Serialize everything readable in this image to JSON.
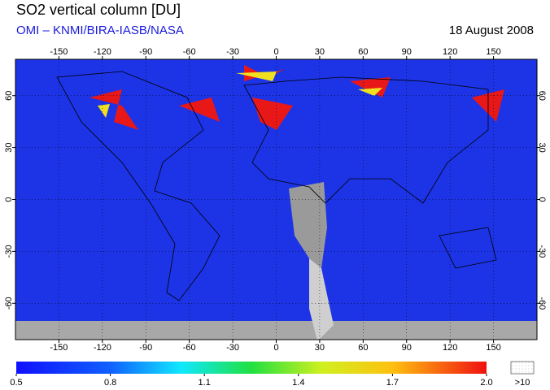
{
  "title": "SO2 vertical column [DU]",
  "source": "OMI  –  KNMI/BIRA-IASB/NASA",
  "date": "18 August 2008",
  "map": {
    "lon_range": [
      -180,
      180
    ],
    "lat_range": [
      -81,
      81
    ],
    "lon_ticks": [
      -150,
      -120,
      -90,
      -60,
      -30,
      0,
      30,
      60,
      90,
      120,
      150
    ],
    "lat_ticks": [
      60,
      30,
      0,
      -30,
      -60
    ]
  },
  "colorbar": {
    "range": [
      0.5,
      2.0
    ],
    "ticks": [
      0.5,
      0.8,
      1.1,
      1.4,
      1.7,
      {
        "value": 2.0,
        "label": "2.0"
      }
    ],
    "over_label": ">10"
  }
}
